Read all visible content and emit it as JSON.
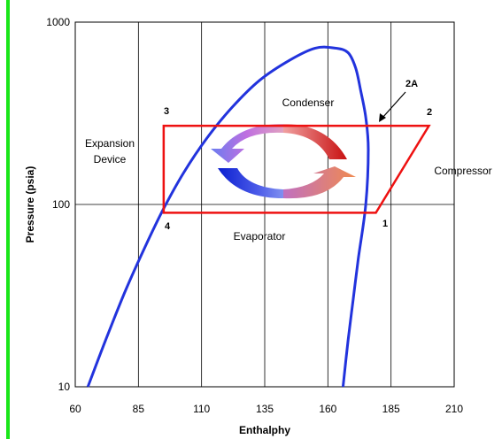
{
  "colors": {
    "left_strip": "#19e619",
    "dome": "#2233dd",
    "cycle": "#ee1111",
    "grid": "#000000"
  },
  "chart_data": {
    "type": "line",
    "xlabel": "Enthalphy",
    "ylabel": "Pressure (psia)",
    "xlim": [
      60,
      210
    ],
    "ylim": [
      10,
      1000
    ],
    "y_scale": "log",
    "grid": true,
    "x_ticks": [
      "60",
      "85",
      "110",
      "135",
      "160",
      "185",
      "210"
    ],
    "y_ticks": [
      "10",
      "100",
      "1000"
    ],
    "series": [
      {
        "kind": "saturation-dome",
        "points": [
          [
            65,
            10
          ],
          [
            72,
            18
          ],
          [
            80,
            34
          ],
          [
            88,
            60
          ],
          [
            95,
            95
          ],
          [
            103,
            150
          ],
          [
            112,
            230
          ],
          [
            122,
            340
          ],
          [
            133,
            480
          ],
          [
            145,
            620
          ],
          [
            155,
            720
          ],
          [
            163,
            720
          ],
          [
            168,
            680
          ],
          [
            171,
            560
          ],
          [
            173,
            420
          ],
          [
            175,
            300
          ],
          [
            176,
            200
          ],
          [
            175,
            100
          ],
          [
            172,
            50
          ],
          [
            170,
            30
          ],
          [
            168,
            18
          ],
          [
            166,
            10
          ]
        ]
      },
      {
        "kind": "refrigeration-cycle",
        "points": [
          [
            95,
            270
          ],
          [
            200,
            270
          ],
          [
            179,
            90
          ],
          [
            95,
            90
          ]
        ],
        "closed": true
      }
    ],
    "point_labels": [
      {
        "text": "3",
        "x": 95,
        "y": 270
      },
      {
        "text": "2",
        "x": 200,
        "y": 270
      },
      {
        "text": "1",
        "x": 179,
        "y": 90
      },
      {
        "text": "4",
        "x": 95,
        "y": 90
      },
      {
        "text": "2A",
        "x": 176,
        "y": 270
      }
    ],
    "annotations": [
      {
        "text": "Condenser"
      },
      {
        "text": "Evaporator"
      },
      {
        "text": "Compressor"
      },
      {
        "text": "Expansion"
      },
      {
        "text": "Device"
      }
    ]
  }
}
